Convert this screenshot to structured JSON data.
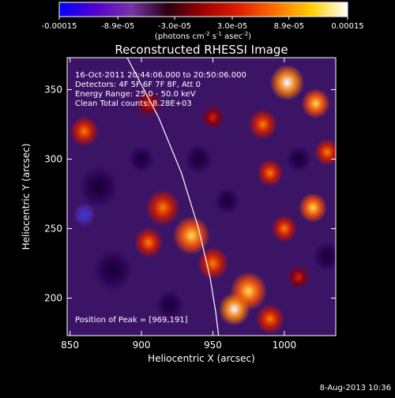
{
  "chart_data": {
    "type": "heatmap",
    "title": "Reconstructed RHESSI Image",
    "xlabel": "Heliocentric X (arcsec)",
    "ylabel": "Heliocentric Y (arcsec)",
    "xlim": [
      848,
      1036
    ],
    "ylim": [
      173,
      373
    ],
    "x_ticks": [
      850,
      900,
      950,
      1000
    ],
    "y_ticks": [
      200,
      250,
      300,
      350
    ],
    "colorbar": {
      "ticks": [
        "-0.00015",
        "-8.9e-05",
        "-3.0e-05",
        "3.0e-05",
        "8.9e-05",
        "0.00015"
      ],
      "tick_values": [
        -0.00015,
        -8.9e-05,
        -3e-05,
        3e-05,
        8.9e-05,
        0.00015
      ],
      "range": [
        -0.00015,
        0.00015
      ],
      "unit_parts": [
        "(photons cm",
        "-2",
        " s",
        "-1",
        " asec",
        "-2",
        ")"
      ],
      "colors": [
        "#0000ff",
        "#5500cc",
        "#7733aa",
        "#2a0010",
        "#a00000",
        "#e02000",
        "#ff7000",
        "#ffd000",
        "#ffffff"
      ]
    },
    "info_lines": [
      "16-Oct-2011 20:44:06.000 to 20:50:06.000",
      "Detectors: 4F 5F 6F 7F 8F, Att 0",
      "Energy Range: 25.0 - 50.0 keV",
      "Clean     Total counts: 8.28E+03"
    ],
    "peak_label": "Position of Peak = [969,191]",
    "peak": [
      969,
      191
    ],
    "limb_arc": [
      [
        890,
        373
      ],
      [
        912,
        330
      ],
      [
        928,
        290
      ],
      [
        940,
        250
      ],
      [
        948,
        215
      ],
      [
        952,
        190
      ],
      [
        954,
        173
      ]
    ],
    "blobs": [
      {
        "x": 1002,
        "y": 355,
        "a": 1.0,
        "r": 12
      },
      {
        "x": 1022,
        "y": 340,
        "a": 0.8,
        "r": 10
      },
      {
        "x": 985,
        "y": 325,
        "a": 0.7,
        "r": 10
      },
      {
        "x": 1030,
        "y": 305,
        "a": 0.6,
        "r": 9
      },
      {
        "x": 990,
        "y": 290,
        "a": 0.6,
        "r": 9
      },
      {
        "x": 1020,
        "y": 265,
        "a": 0.8,
        "r": 10
      },
      {
        "x": 1000,
        "y": 250,
        "a": 0.6,
        "r": 9
      },
      {
        "x": 915,
        "y": 265,
        "a": 0.7,
        "r": 12
      },
      {
        "x": 935,
        "y": 245,
        "a": 0.9,
        "r": 13
      },
      {
        "x": 905,
        "y": 240,
        "a": 0.6,
        "r": 10
      },
      {
        "x": 950,
        "y": 225,
        "a": 0.6,
        "r": 11
      },
      {
        "x": 975,
        "y": 205,
        "a": 0.9,
        "r": 13
      },
      {
        "x": 965,
        "y": 192,
        "a": 1.0,
        "r": 11
      },
      {
        "x": 990,
        "y": 185,
        "a": 0.6,
        "r": 10
      },
      {
        "x": 860,
        "y": 320,
        "a": 0.6,
        "r": 10
      },
      {
        "x": 905,
        "y": 340,
        "a": 0.4,
        "r": 9
      },
      {
        "x": 950,
        "y": 330,
        "a": 0.4,
        "r": 8
      },
      {
        "x": 1010,
        "y": 215,
        "a": 0.5,
        "r": 8
      },
      {
        "x": 870,
        "y": 280,
        "a": -0.5,
        "r": 14
      },
      {
        "x": 880,
        "y": 220,
        "a": -0.6,
        "r": 14
      },
      {
        "x": 940,
        "y": 300,
        "a": -0.5,
        "r": 10
      },
      {
        "x": 960,
        "y": 270,
        "a": -0.4,
        "r": 9
      },
      {
        "x": 1010,
        "y": 300,
        "a": -0.5,
        "r": 9
      },
      {
        "x": 1030,
        "y": 230,
        "a": -0.6,
        "r": 10
      },
      {
        "x": 920,
        "y": 195,
        "a": -0.4,
        "r": 10
      },
      {
        "x": 860,
        "y": 260,
        "a": -0.8,
        "r": 8
      },
      {
        "x": 900,
        "y": 300,
        "a": -0.5,
        "r": 9
      }
    ]
  },
  "footer": {
    "date": "8-Aug-2013 10:36"
  }
}
